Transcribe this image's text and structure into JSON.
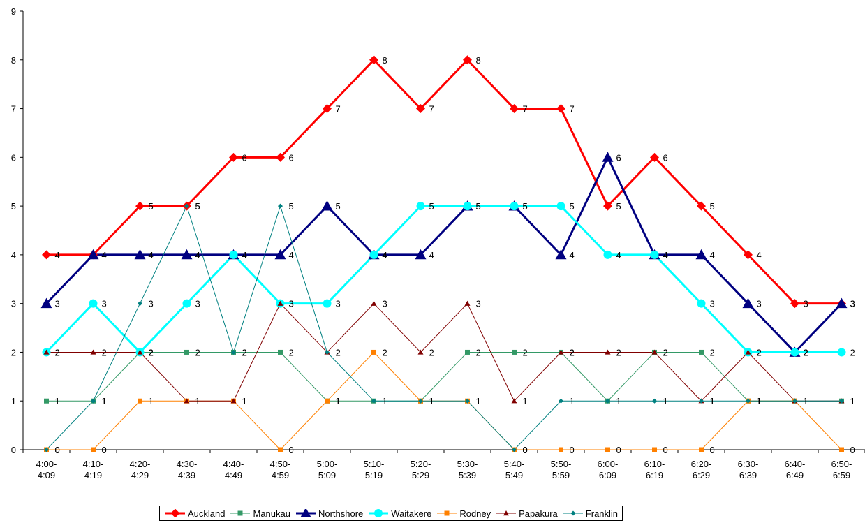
{
  "chart_data": {
    "type": "line",
    "title": "",
    "xlabel": "",
    "ylabel": "",
    "categories": [
      "4:00-4:09",
      "4:10-4:19",
      "4:20-4:29",
      "4:30-4:39",
      "4:40-4:49",
      "4:50-4:59",
      "5:00-5:09",
      "5:10-5:19",
      "5:20-5:29",
      "5:30-5:39",
      "5:40-5:49",
      "5:50-5:59",
      "6:00-6:09",
      "6:10-6:19",
      "6:20-6:29",
      "6:30-6:39",
      "6:40-6:49",
      "6:50-6:59"
    ],
    "category_lines": [
      [
        "4:00-",
        "4:09"
      ],
      [
        "4:10-",
        "4:19"
      ],
      [
        "4:20-",
        "4:29"
      ],
      [
        "4:30-",
        "4:39"
      ],
      [
        "4:40-",
        "4:49"
      ],
      [
        "4:50-",
        "4:59"
      ],
      [
        "5:00-",
        "5:09"
      ],
      [
        "5:10-",
        "5:19"
      ],
      [
        "5:20-",
        "5:29"
      ],
      [
        "5:30-",
        "5:39"
      ],
      [
        "5:40-",
        "5:49"
      ],
      [
        "5:50-",
        "5:59"
      ],
      [
        "6:00-",
        "6:09"
      ],
      [
        "6:10-",
        "6:19"
      ],
      [
        "6:20-",
        "6:29"
      ],
      [
        "6:30-",
        "6:39"
      ],
      [
        "6:40-",
        "6:49"
      ],
      [
        "6:50-",
        "6:59"
      ]
    ],
    "ylim": [
      0,
      9
    ],
    "yticks": [
      0,
      1,
      2,
      3,
      4,
      5,
      6,
      7,
      8,
      9
    ],
    "grid": false,
    "legend_position": "bottom",
    "series": [
      {
        "name": "Auckland",
        "color": "#ff0000",
        "marker": "diamond",
        "bold": true,
        "values": [
          4,
          4,
          5,
          5,
          6,
          6,
          7,
          8,
          7,
          8,
          7,
          7,
          5,
          6,
          5,
          4,
          3,
          3
        ]
      },
      {
        "name": "Manukau",
        "color": "#339966",
        "marker": "square",
        "bold": false,
        "values": [
          1,
          1,
          2,
          2,
          2,
          2,
          1,
          1,
          1,
          2,
          2,
          2,
          1,
          2,
          2,
          1,
          1,
          1
        ]
      },
      {
        "name": "Northshore",
        "color": "#000080",
        "marker": "triangle",
        "bold": true,
        "values": [
          3,
          4,
          4,
          4,
          4,
          4,
          5,
          4,
          4,
          5,
          5,
          4,
          6,
          4,
          4,
          3,
          2,
          3
        ]
      },
      {
        "name": "Waitakere",
        "color": "#00ffff",
        "marker": "circle",
        "bold": true,
        "values": [
          2,
          3,
          2,
          3,
          4,
          3,
          3,
          4,
          5,
          5,
          5,
          5,
          4,
          4,
          3,
          2,
          2,
          2
        ]
      },
      {
        "name": "Rodney",
        "color": "#ff8000",
        "marker": "square",
        "bold": false,
        "values": [
          0,
          0,
          1,
          1,
          1,
          0,
          1,
          2,
          1,
          1,
          0,
          0,
          0,
          0,
          0,
          1,
          1,
          0
        ]
      },
      {
        "name": "Papakura",
        "color": "#800000",
        "marker": "triangle",
        "bold": false,
        "values": [
          2,
          2,
          2,
          1,
          1,
          3,
          2,
          3,
          2,
          3,
          1,
          2,
          2,
          2,
          1,
          2,
          1,
          1
        ]
      },
      {
        "name": "Franklin",
        "color": "#008080",
        "marker": "diamond",
        "bold": false,
        "values": [
          0,
          1,
          3,
          5,
          2,
          5,
          2,
          1,
          1,
          1,
          0,
          1,
          1,
          1,
          1,
          1,
          1,
          1
        ]
      }
    ]
  }
}
